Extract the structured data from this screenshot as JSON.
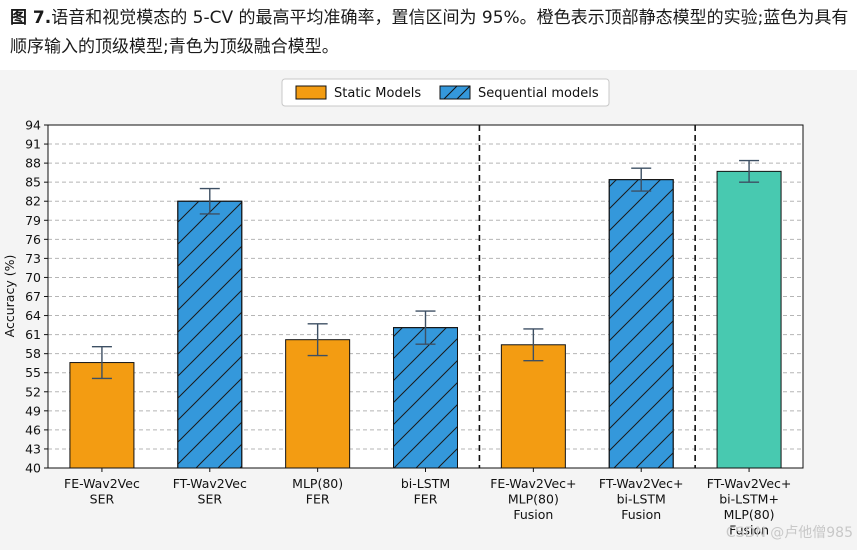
{
  "caption": {
    "label": "图 7.",
    "text": "语音和视觉模态的 5-CV 的最高平均准确率，置信区间为 95%。橙色表示顶部静态模型的实验;蓝色为具有顺序输入的顶级模型;青色为顶级融合模型。"
  },
  "watermark": "CSDN @卢他僧985",
  "colors": {
    "static": "#f39c12",
    "sequential": "#3498db",
    "fusion": "#48c9b0"
  },
  "chart_data": {
    "type": "bar",
    "ylabel": "Accuracy (%)",
    "ylim": [
      40,
      94
    ],
    "yticks": [
      40,
      43,
      46,
      49,
      52,
      55,
      58,
      61,
      64,
      67,
      70,
      73,
      76,
      79,
      82,
      85,
      88,
      91,
      94
    ],
    "grid": true,
    "legend_position": "top-center",
    "legend": [
      {
        "label": "Static Models",
        "kind": "static"
      },
      {
        "label": "Sequential models",
        "kind": "sequential"
      }
    ],
    "bars": [
      {
        "category": [
          "FE-Wav2Vec",
          "SER"
        ],
        "value": 56.6,
        "err": 2.5,
        "kind": "static"
      },
      {
        "category": [
          "FT-Wav2Vec",
          "SER"
        ],
        "value": 82.0,
        "err": 2.0,
        "kind": "sequential"
      },
      {
        "category": [
          "MLP(80)",
          "FER"
        ],
        "value": 60.2,
        "err": 2.5,
        "kind": "static"
      },
      {
        "category": [
          "bi-LSTM",
          "FER"
        ],
        "value": 62.1,
        "err": 2.6,
        "kind": "sequential"
      },
      {
        "category": [
          "FE-Wav2Vec+",
          "MLP(80)",
          "Fusion"
        ],
        "value": 59.4,
        "err": 2.5,
        "kind": "static"
      },
      {
        "category": [
          "FT-Wav2Vec+",
          "bi-LSTM",
          "Fusion"
        ],
        "value": 85.4,
        "err": 1.8,
        "kind": "sequential"
      },
      {
        "category": [
          "FT-Wav2Vec+",
          "bi-LSTM+",
          "MLP(80)",
          "Fusion"
        ],
        "value": 86.7,
        "err": 1.7,
        "kind": "fusion"
      }
    ],
    "separators_after": [
      4,
      6
    ]
  }
}
